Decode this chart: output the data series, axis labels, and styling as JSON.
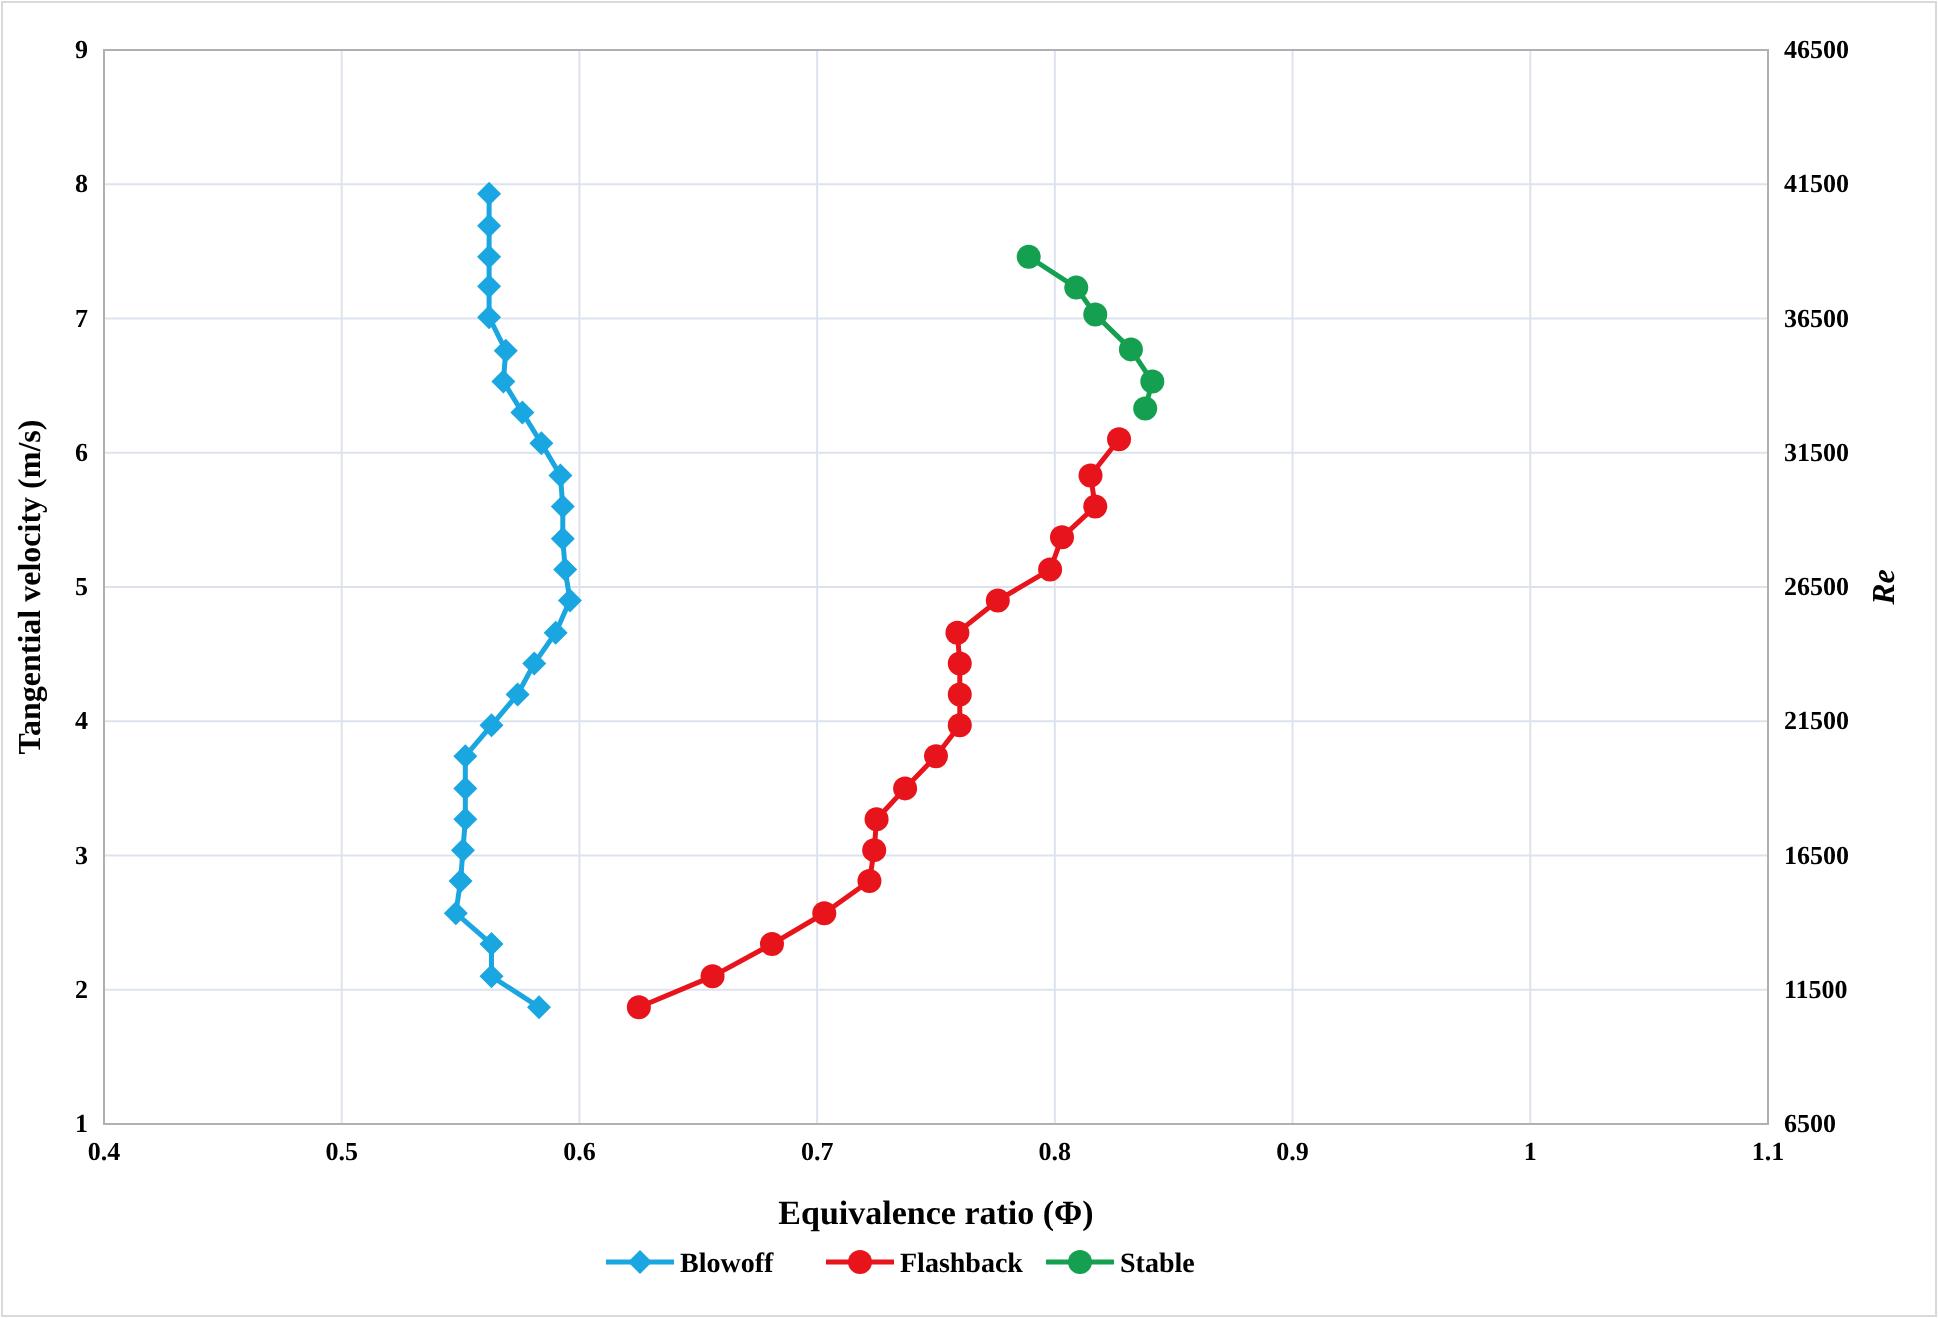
{
  "chart_data": {
    "type": "line",
    "xlabel": "Equivalence ratio (Φ)",
    "ylabel": "Tangential velocity (m/s)",
    "y2label": "Re",
    "xlim": [
      0.4,
      1.1
    ],
    "xticks": [
      0.4,
      0.5,
      0.6,
      0.7,
      0.8,
      0.9,
      1,
      1.1
    ],
    "ylim": [
      1,
      9
    ],
    "yticks": [
      1,
      2,
      3,
      4,
      5,
      6,
      7,
      8,
      9
    ],
    "y2lim": [
      6500,
      46500
    ],
    "y2ticks": [
      6500,
      11500,
      16500,
      21500,
      26500,
      31500,
      36500,
      41500,
      46500
    ],
    "grid": true,
    "legend": "bottom",
    "line_style": "solid",
    "series": [
      {
        "name": "Blowoff",
        "color": "#1aa6e0",
        "marker": "diamond",
        "x": [
          0.562,
          0.562,
          0.562,
          0.562,
          0.562,
          0.569,
          0.568,
          0.576,
          0.584,
          0.592,
          0.593,
          0.593,
          0.594,
          0.596,
          0.59,
          0.581,
          0.574,
          0.563,
          0.552,
          0.552,
          0.552,
          0.551,
          0.55,
          0.548,
          0.563,
          0.563,
          0.583
        ],
        "values": [
          7.93,
          7.69,
          7.46,
          7.24,
          7.01,
          6.76,
          6.53,
          6.3,
          6.07,
          5.83,
          5.6,
          5.36,
          5.13,
          4.9,
          4.66,
          4.43,
          4.2,
          3.97,
          3.74,
          3.5,
          3.27,
          3.04,
          2.81,
          2.57,
          2.34,
          2.1,
          1.87
        ]
      },
      {
        "name": "Flashback",
        "color": "#e8141b",
        "marker": "circle",
        "x": [
          0.625,
          0.656,
          0.681,
          0.703,
          0.722,
          0.724,
          0.725,
          0.737,
          0.75,
          0.76,
          0.76,
          0.76,
          0.759,
          0.776,
          0.798,
          0.803,
          0.817,
          0.815,
          0.827
        ],
        "values": [
          1.87,
          2.1,
          2.34,
          2.57,
          2.81,
          3.04,
          3.27,
          3.5,
          3.74,
          3.97,
          4.2,
          4.43,
          4.66,
          4.9,
          5.13,
          5.37,
          5.6,
          5.83,
          6.1
        ]
      },
      {
        "name": "Stable",
        "color": "#14a050",
        "marker": "circle",
        "x": [
          0.838,
          0.841,
          0.832,
          0.817,
          0.809,
          0.789
        ],
        "values": [
          6.33,
          6.53,
          6.77,
          7.03,
          7.23,
          7.46
        ]
      }
    ]
  }
}
